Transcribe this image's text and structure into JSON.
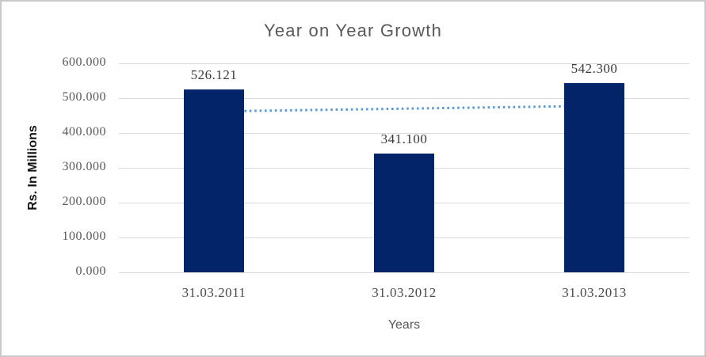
{
  "chart_data": {
    "type": "bar",
    "title": "Year on Year Growth",
    "xlabel": "Years",
    "ylabel": "Rs. In Millions",
    "categories": [
      "31.03.2011",
      "31.03.2012",
      "31.03.2013"
    ],
    "values": [
      526.121,
      341.1,
      542.3
    ],
    "bar_labels": [
      "526.121",
      "341.100",
      "542.300"
    ],
    "ylim": [
      0,
      600
    ],
    "ytick_step": 100,
    "ytick_labels": [
      "0.000",
      "100.000",
      "200.000",
      "300.000",
      "400.000",
      "500.000",
      "600.000"
    ],
    "grid": true,
    "legend": "none",
    "trendline": {
      "style": "dotted",
      "start_value": 461.8,
      "end_value": 477.9
    },
    "colors": {
      "bar": "#04246a",
      "trendline": "#5b9bd5",
      "grid": "#d9d9d9",
      "title_text": "#595959",
      "tick_text": "#4a4a4a",
      "frame_border": "#c9c9c9"
    }
  }
}
